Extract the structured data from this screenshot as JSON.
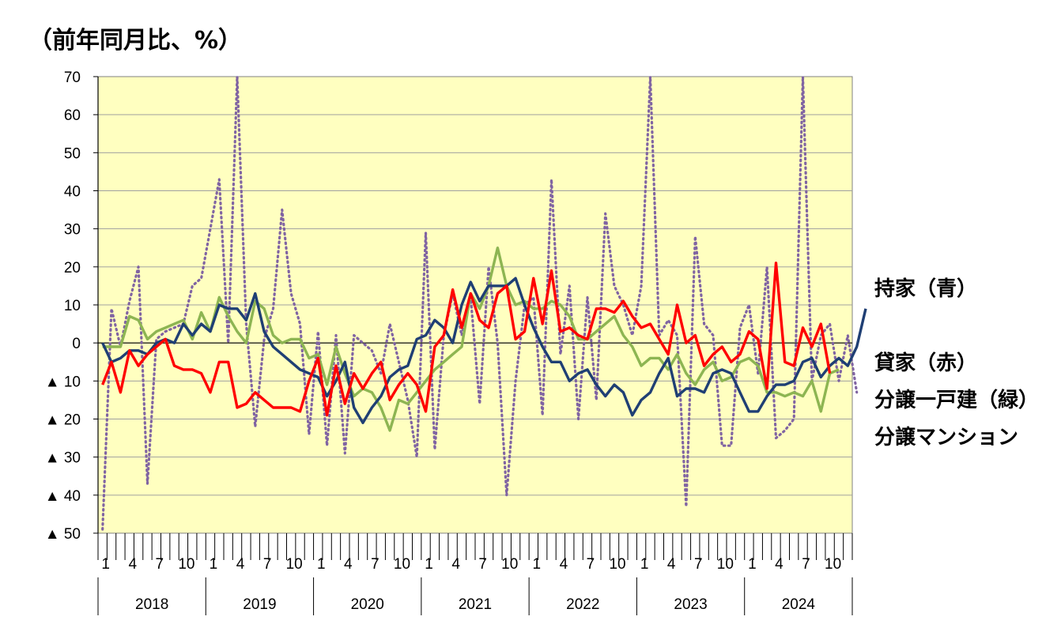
{
  "unit_label": "（前年同月比、%）",
  "legend": {
    "owner": "持家（青）",
    "rental": "貸家（赤）",
    "detached": "分譲一戸建（緑）",
    "condo": "分譲マンション"
  },
  "chart_data": {
    "type": "line",
    "ylim": [
      -50,
      70
    ],
    "y_ticks": [
      70,
      60,
      50,
      40,
      30,
      20,
      10,
      0,
      -10,
      -20,
      -30,
      -40,
      -50
    ],
    "y_tick_labels": [
      "70",
      "60",
      "50",
      "40",
      "30",
      "20",
      "10",
      "0",
      "▲ 10",
      "▲ 20",
      "▲ 30",
      "▲ 40",
      "▲ 50"
    ],
    "month_ticks": [
      "1",
      "4",
      "7",
      "10"
    ],
    "years": [
      "2018",
      "2019",
      "2020",
      "2021",
      "2022",
      "2023",
      "2024"
    ],
    "grid": true,
    "colors": {
      "plot_bg": "#FFFFC0",
      "owner": "#1F3F74",
      "rental": "#FF0000",
      "detached": "#8DB552",
      "condo": "#8064A2",
      "grid": "#A0A0A0"
    },
    "series": [
      {
        "key": "owner",
        "name": "持家（青）",
        "style": "solid",
        "values": [
          0,
          -5,
          -4,
          -2,
          -2,
          -3,
          0,
          1,
          0,
          5,
          2,
          5,
          3,
          10,
          9,
          9,
          6,
          13,
          3,
          -1,
          -3,
          -5,
          -7,
          -8,
          -9,
          -14,
          -10,
          -5,
          -17,
          -21,
          -17,
          -14,
          -9,
          -7,
          -6,
          1,
          2,
          6,
          4,
          0,
          10,
          16,
          11,
          15,
          15,
          15,
          17,
          10,
          4,
          -1,
          -5,
          -5,
          -10,
          -8,
          -7,
          -11,
          -14,
          -11,
          -13,
          -19,
          -15,
          -13,
          -8,
          -4,
          -14,
          -12,
          -12,
          -13,
          -8,
          -7,
          -8,
          -13,
          -18,
          -18,
          -14,
          -11,
          -11,
          -10,
          -5,
          -4,
          -9,
          -6,
          -4,
          -6,
          -1,
          9
        ]
      },
      {
        "key": "rental",
        "name": "貸家（赤）",
        "style": "solid",
        "values": [
          -11,
          -5,
          -13,
          -2,
          -6,
          -3,
          -1,
          1,
          -6,
          -7,
          -7,
          -8,
          -13,
          -5,
          -5,
          -17,
          -16,
          -13,
          -15,
          -17,
          -17,
          -17,
          -18,
          -10,
          -4,
          -19,
          -6,
          -16,
          -8,
          -12,
          -8,
          -5,
          -15,
          -11,
          -8,
          -11,
          -18,
          -1,
          2,
          14,
          4,
          13,
          6,
          4,
          13,
          15,
          1,
          3,
          17,
          5,
          19,
          3,
          4,
          2,
          1,
          9,
          9,
          8,
          11,
          7,
          4,
          5,
          1,
          -3,
          10,
          0,
          2,
          -6,
          -3,
          -1,
          -5,
          -3,
          3,
          1,
          -12,
          21,
          -5,
          -6,
          4,
          -1,
          5,
          -8
        ]
      },
      {
        "key": "detached",
        "name": "分譲一戸建（緑）",
        "style": "solid",
        "values": [
          -1,
          -1,
          -1,
          7,
          6,
          1,
          3,
          4,
          5,
          6,
          1,
          8,
          3,
          12,
          7,
          3,
          0,
          11,
          9,
          2,
          0,
          1,
          1,
          -4,
          -3,
          -11,
          -1,
          -8,
          -14,
          -12,
          -13,
          -17,
          -23,
          -15,
          -16,
          -13,
          -10,
          -7,
          -5,
          -3,
          -1,
          13,
          9,
          15,
          25,
          15,
          10,
          11,
          9,
          9,
          11,
          10,
          7,
          1,
          1,
          3,
          5,
          7,
          2,
          -1,
          -6,
          -4,
          -4,
          -7,
          -3,
          -8,
          -11,
          -7,
          -5,
          -10,
          -9,
          -5,
          -4,
          -6,
          -13,
          -13,
          -14,
          -13,
          -14,
          -10,
          -18,
          -8,
          -7
        ]
      },
      {
        "key": "condo",
        "name": "分譲マンション",
        "style": "dotted",
        "values": [
          -49,
          9,
          -1,
          11,
          20,
          -37,
          1,
          3,
          4,
          5,
          15,
          17,
          30,
          43,
          0,
          70,
          5,
          -22,
          1,
          9,
          35,
          13,
          5,
          -24,
          3,
          -27,
          2,
          -29,
          2,
          0,
          -2,
          -8,
          5,
          -5,
          -15,
          -30,
          29,
          -28,
          2,
          13,
          2,
          12,
          -16,
          20,
          0,
          -40,
          -10,
          10,
          12,
          -19,
          43,
          -3,
          15,
          -20,
          12,
          -15,
          34,
          15,
          10,
          2,
          15,
          70,
          2,
          6,
          2,
          -43,
          28,
          5,
          2,
          -27,
          -27,
          4,
          10,
          -8,
          20,
          -25,
          -23,
          -20,
          70,
          -10,
          2,
          5,
          -10,
          2,
          -13
        ]
      }
    ]
  }
}
